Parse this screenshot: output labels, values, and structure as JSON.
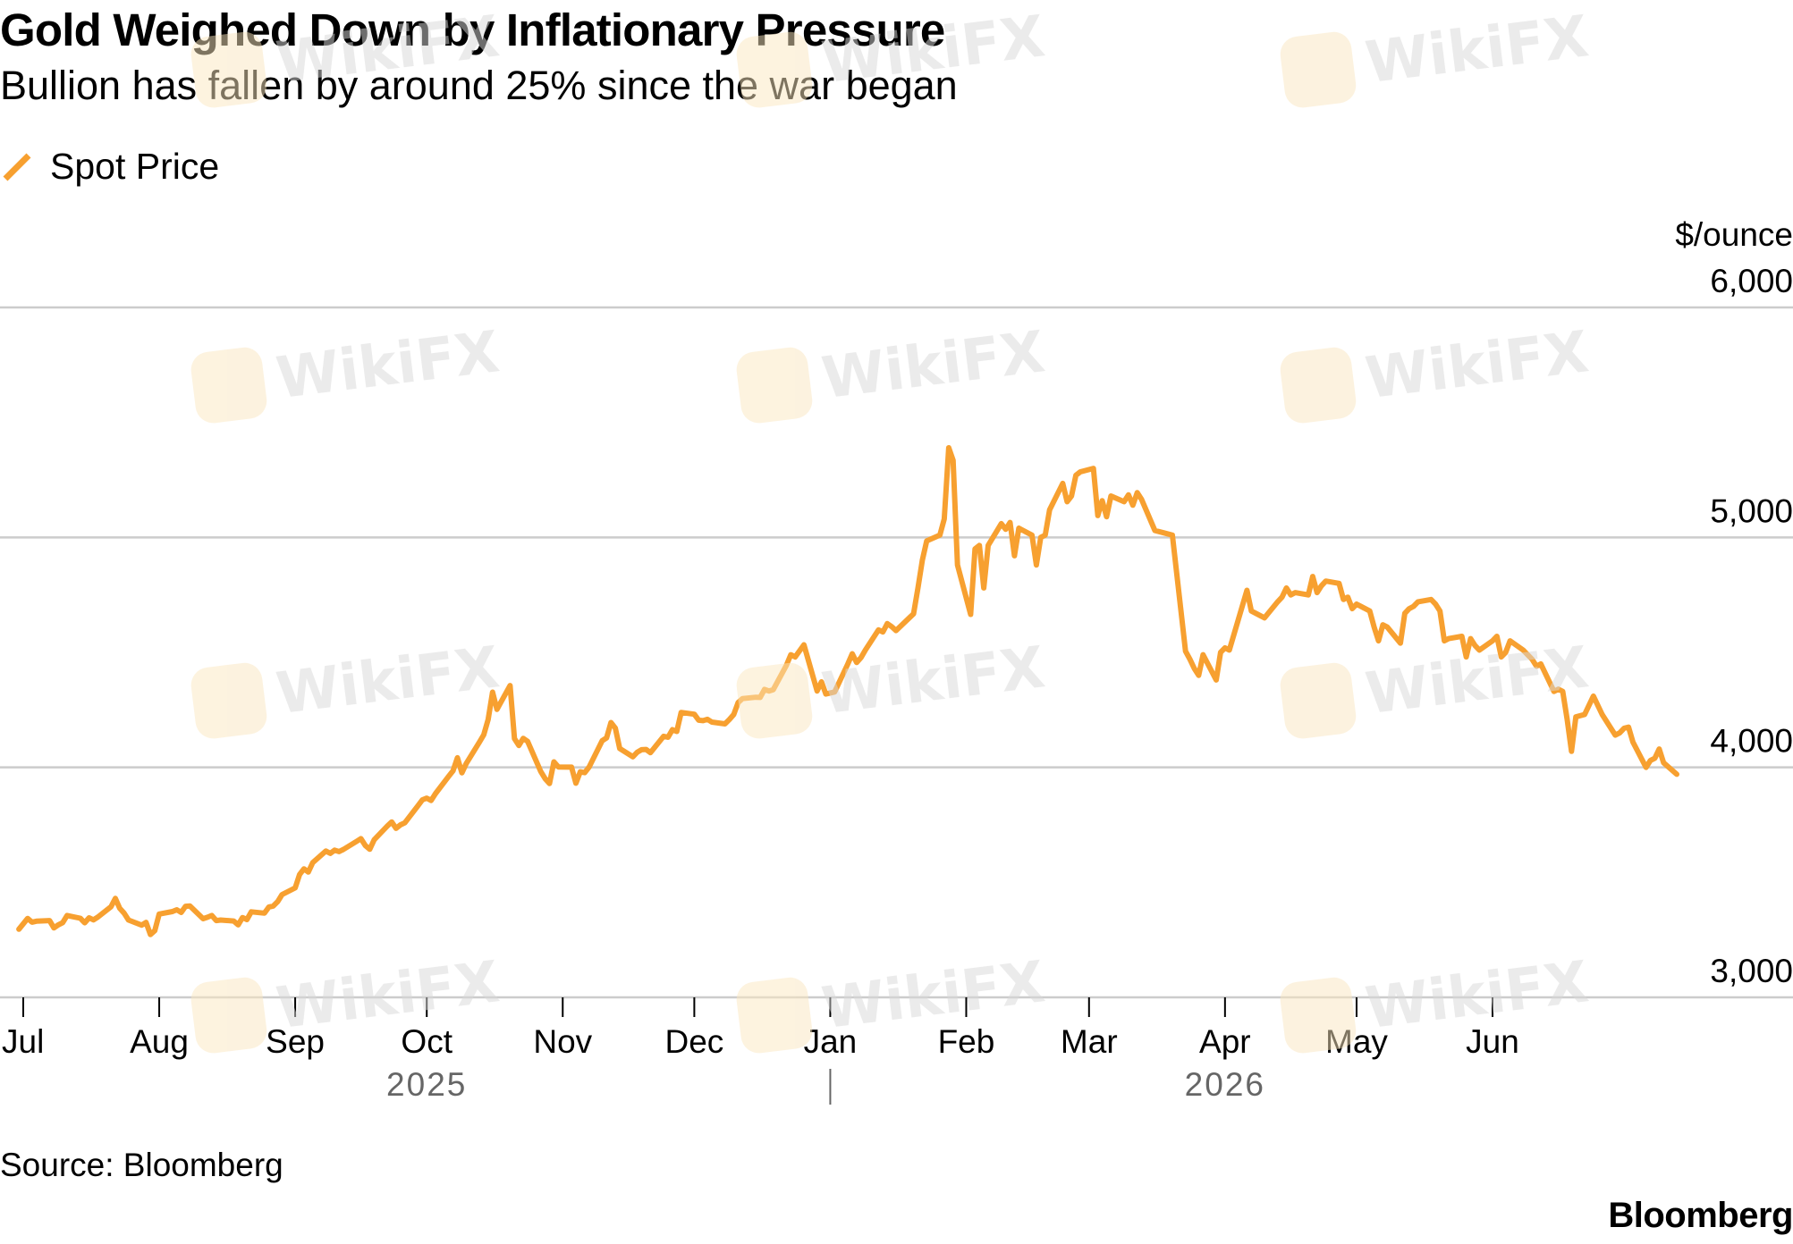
{
  "header": {
    "title": "Gold Weighed Down by Inflationary Pressure",
    "subtitle": "Bullion has fallen by around 25% since the war began"
  },
  "legend": {
    "label": "Spot Price",
    "color": "#F7A030"
  },
  "footer": {
    "source": "Source: Bloomberg",
    "brand": "Bloomberg"
  },
  "watermark": {
    "text": "WikiFX",
    "icon": "wikifx-logo-icon"
  },
  "chart_data": {
    "type": "line",
    "ylabel": "$/ounce",
    "ylim": [
      3000,
      6000
    ],
    "yticks": [
      6000,
      5000,
      4000,
      3000
    ],
    "ytick_labels": [
      "6,000",
      "5,000",
      "4,000",
      "3,000"
    ],
    "xlim": [
      "2025-07-01",
      "2026-07-13"
    ],
    "xticks": [
      {
        "date": "2025-07-01",
        "label": "Jul"
      },
      {
        "date": "2025-08-01",
        "label": "Aug"
      },
      {
        "date": "2025-09-01",
        "label": "Sep"
      },
      {
        "date": "2025-10-01",
        "label": "Oct"
      },
      {
        "date": "2025-11-01",
        "label": "Nov"
      },
      {
        "date": "2025-12-01",
        "label": "Dec"
      },
      {
        "date": "2026-01-01",
        "label": "Jan"
      },
      {
        "date": "2026-02-01",
        "label": "Feb"
      },
      {
        "date": "2026-03-01",
        "label": "Mar"
      },
      {
        "date": "2026-04-01",
        "label": "Apr"
      },
      {
        "date": "2026-05-01",
        "label": "May"
      },
      {
        "date": "2026-06-01",
        "label": "Jun"
      }
    ],
    "years": [
      {
        "label": "2025",
        "date": "2025-10-01"
      },
      {
        "label": "2026",
        "date": "2026-04-01"
      }
    ],
    "year_divider": "2026-01-01",
    "grid": true,
    "legend_position": "top-left",
    "series": [
      {
        "name": "Spot Price",
        "color": "#F7A030",
        "points": [
          [
            "2025-06-30",
            3296
          ],
          [
            "2025-07-02",
            3343
          ],
          [
            "2025-07-03",
            3327
          ],
          [
            "2025-07-04",
            3331
          ],
          [
            "2025-07-07",
            3334
          ],
          [
            "2025-07-08",
            3302
          ],
          [
            "2025-07-09",
            3315
          ],
          [
            "2025-07-10",
            3325
          ],
          [
            "2025-07-11",
            3356
          ],
          [
            "2025-07-14",
            3344
          ],
          [
            "2025-07-15",
            3324
          ],
          [
            "2025-07-16",
            3346
          ],
          [
            "2025-07-17",
            3337
          ],
          [
            "2025-07-18",
            3349
          ],
          [
            "2025-07-21",
            3394
          ],
          [
            "2025-07-22",
            3430
          ],
          [
            "2025-07-23",
            3387
          ],
          [
            "2025-07-24",
            3366
          ],
          [
            "2025-07-25",
            3336
          ],
          [
            "2025-07-28",
            3314
          ],
          [
            "2025-07-29",
            3326
          ],
          [
            "2025-07-30",
            3273
          ],
          [
            "2025-07-31",
            3290
          ],
          [
            "2025-08-01",
            3362
          ],
          [
            "2025-08-04",
            3373
          ],
          [
            "2025-08-05",
            3381
          ],
          [
            "2025-08-06",
            3369
          ],
          [
            "2025-08-07",
            3396
          ],
          [
            "2025-08-08",
            3397
          ],
          [
            "2025-08-11",
            3342
          ],
          [
            "2025-08-12",
            3348
          ],
          [
            "2025-08-13",
            3356
          ],
          [
            "2025-08-14",
            3334
          ],
          [
            "2025-08-15",
            3336
          ],
          [
            "2025-08-18",
            3332
          ],
          [
            "2025-08-19",
            3315
          ],
          [
            "2025-08-20",
            3347
          ],
          [
            "2025-08-21",
            3338
          ],
          [
            "2025-08-22",
            3372
          ],
          [
            "2025-08-25",
            3366
          ],
          [
            "2025-08-26",
            3393
          ],
          [
            "2025-08-27",
            3397
          ],
          [
            "2025-08-28",
            3416
          ],
          [
            "2025-08-29",
            3447
          ],
          [
            "2025-09-01",
            3476
          ],
          [
            "2025-09-02",
            3534
          ],
          [
            "2025-09-03",
            3559
          ],
          [
            "2025-09-04",
            3545
          ],
          [
            "2025-09-05",
            3586
          ],
          [
            "2025-09-08",
            3636
          ],
          [
            "2025-09-09",
            3626
          ],
          [
            "2025-09-10",
            3640
          ],
          [
            "2025-09-11",
            3634
          ],
          [
            "2025-09-12",
            3643
          ],
          [
            "2025-09-15",
            3678
          ],
          [
            "2025-09-16",
            3690
          ],
          [
            "2025-09-17",
            3660
          ],
          [
            "2025-09-18",
            3644
          ],
          [
            "2025-09-19",
            3685
          ],
          [
            "2025-09-22",
            3745
          ],
          [
            "2025-09-23",
            3763
          ],
          [
            "2025-09-24",
            3735
          ],
          [
            "2025-09-25",
            3750
          ],
          [
            "2025-09-26",
            3759
          ],
          [
            "2025-09-29",
            3833
          ],
          [
            "2025-09-30",
            3859
          ],
          [
            "2025-10-01",
            3866
          ],
          [
            "2025-10-02",
            3856
          ],
          [
            "2025-10-03",
            3886
          ],
          [
            "2025-10-06",
            3961
          ],
          [
            "2025-10-07",
            3985
          ],
          [
            "2025-10-08",
            4042
          ],
          [
            "2025-10-09",
            3976
          ],
          [
            "2025-10-10",
            4017
          ],
          [
            "2025-10-13",
            4110
          ],
          [
            "2025-10-14",
            4142
          ],
          [
            "2025-10-15",
            4209
          ],
          [
            "2025-10-16",
            4327
          ],
          [
            "2025-10-17",
            4252
          ],
          [
            "2025-10-20",
            4356
          ],
          [
            "2025-10-21",
            4125
          ],
          [
            "2025-10-22",
            4095
          ],
          [
            "2025-10-23",
            4126
          ],
          [
            "2025-10-24",
            4113
          ],
          [
            "2025-10-27",
            3982
          ],
          [
            "2025-10-28",
            3951
          ],
          [
            "2025-10-29",
            3930
          ],
          [
            "2025-10-30",
            4024
          ],
          [
            "2025-10-31",
            4002
          ],
          [
            "2025-11-03",
            4001
          ],
          [
            "2025-11-04",
            3931
          ],
          [
            "2025-11-05",
            3981
          ],
          [
            "2025-11-06",
            3977
          ],
          [
            "2025-11-07",
            4001
          ],
          [
            "2025-11-10",
            4116
          ],
          [
            "2025-11-11",
            4128
          ],
          [
            "2025-11-12",
            4195
          ],
          [
            "2025-11-13",
            4171
          ],
          [
            "2025-11-14",
            4082
          ],
          [
            "2025-11-17",
            4046
          ],
          [
            "2025-11-18",
            4066
          ],
          [
            "2025-11-19",
            4077
          ],
          [
            "2025-11-20",
            4078
          ],
          [
            "2025-11-21",
            4064
          ],
          [
            "2025-11-24",
            4135
          ],
          [
            "2025-11-25",
            4131
          ],
          [
            "2025-11-26",
            4164
          ],
          [
            "2025-11-27",
            4156
          ],
          [
            "2025-11-28",
            4239
          ],
          [
            "2025-12-01",
            4231
          ],
          [
            "2025-12-02",
            4205
          ],
          [
            "2025-12-03",
            4203
          ],
          [
            "2025-12-04",
            4209
          ],
          [
            "2025-12-05",
            4197
          ],
          [
            "2025-12-08",
            4189
          ],
          [
            "2025-12-09",
            4208
          ],
          [
            "2025-12-10",
            4230
          ],
          [
            "2025-12-11",
            4282
          ],
          [
            "2025-12-12",
            4299
          ],
          [
            "2025-12-15",
            4305
          ],
          [
            "2025-12-16",
            4304
          ],
          [
            "2025-12-17",
            4339
          ],
          [
            "2025-12-18",
            4332
          ],
          [
            "2025-12-19",
            4338
          ],
          [
            "2025-12-22",
            4444
          ],
          [
            "2025-12-23",
            4490
          ],
          [
            "2025-12-24",
            4480
          ],
          [
            "2025-12-26",
            4533
          ],
          [
            "2025-12-29",
            4332
          ],
          [
            "2025-12-30",
            4372
          ],
          [
            "2025-12-31",
            4319
          ],
          [
            "2026-01-02",
            4328
          ],
          [
            "2026-01-05",
            4449
          ],
          [
            "2026-01-06",
            4494
          ],
          [
            "2026-01-07",
            4456
          ],
          [
            "2026-01-08",
            4477
          ],
          [
            "2026-01-09",
            4510
          ],
          [
            "2026-01-12",
            4598
          ],
          [
            "2026-01-13",
            4589
          ],
          [
            "2026-01-14",
            4625
          ],
          [
            "2026-01-15",
            4612
          ],
          [
            "2026-01-16",
            4595
          ],
          [
            "2026-01-20",
            4668
          ],
          [
            "2026-01-21",
            4780
          ],
          [
            "2026-01-22",
            4901
          ],
          [
            "2026-01-23",
            4985
          ],
          [
            "2026-01-26",
            5010
          ],
          [
            "2026-01-27",
            5080
          ],
          [
            "2026-01-28",
            5390
          ],
          [
            "2026-01-29",
            5335
          ],
          [
            "2026-01-30",
            4880
          ],
          [
            "2026-02-02",
            4665
          ],
          [
            "2026-02-03",
            4950
          ],
          [
            "2026-02-04",
            4965
          ],
          [
            "2026-02-05",
            4780
          ],
          [
            "2026-02-06",
            4965
          ],
          [
            "2026-02-09",
            5060
          ],
          [
            "2026-02-10",
            5035
          ],
          [
            "2026-02-11",
            5065
          ],
          [
            "2026-02-12",
            4920
          ],
          [
            "2026-02-13",
            5040
          ],
          [
            "2026-02-16",
            5010
          ],
          [
            "2026-02-17",
            4880
          ],
          [
            "2026-02-18",
            5000
          ],
          [
            "2026-02-19",
            5010
          ],
          [
            "2026-02-20",
            5120
          ],
          [
            "2026-02-23",
            5235
          ],
          [
            "2026-02-24",
            5155
          ],
          [
            "2026-02-25",
            5180
          ],
          [
            "2026-02-26",
            5270
          ],
          [
            "2026-02-27",
            5285
          ],
          [
            "2026-03-02",
            5300
          ],
          [
            "2026-03-03",
            5095
          ],
          [
            "2026-03-04",
            5160
          ],
          [
            "2026-03-05",
            5090
          ],
          [
            "2026-03-06",
            5180
          ],
          [
            "2026-03-09",
            5155
          ],
          [
            "2026-03-10",
            5185
          ],
          [
            "2026-03-11",
            5140
          ],
          [
            "2026-03-12",
            5195
          ],
          [
            "2026-03-13",
            5165
          ],
          [
            "2026-03-16",
            5030
          ],
          [
            "2026-03-18",
            5020
          ],
          [
            "2026-03-20",
            5010
          ],
          [
            "2026-03-23",
            4505
          ],
          [
            "2026-03-24",
            4470
          ],
          [
            "2026-03-25",
            4430
          ],
          [
            "2026-03-26",
            4400
          ],
          [
            "2026-03-27",
            4490
          ],
          [
            "2026-03-30",
            4380
          ],
          [
            "2026-03-31",
            4500
          ],
          [
            "2026-04-01",
            4520
          ],
          [
            "2026-04-02",
            4510
          ],
          [
            "2026-04-06",
            4770
          ],
          [
            "2026-04-07",
            4680
          ],
          [
            "2026-04-09",
            4660
          ],
          [
            "2026-04-10",
            4650
          ],
          [
            "2026-04-13",
            4720
          ],
          [
            "2026-04-14",
            4740
          ],
          [
            "2026-04-15",
            4780
          ],
          [
            "2026-04-16",
            4750
          ],
          [
            "2026-04-17",
            4760
          ],
          [
            "2026-04-20",
            4750
          ],
          [
            "2026-04-21",
            4830
          ],
          [
            "2026-04-22",
            4760
          ],
          [
            "2026-04-23",
            4790
          ],
          [
            "2026-04-24",
            4810
          ],
          [
            "2026-04-27",
            4800
          ],
          [
            "2026-04-28",
            4730
          ],
          [
            "2026-04-29",
            4740
          ],
          [
            "2026-04-30",
            4690
          ],
          [
            "2026-05-01",
            4710
          ],
          [
            "2026-05-04",
            4680
          ],
          [
            "2026-05-05",
            4610
          ],
          [
            "2026-05-06",
            4550
          ],
          [
            "2026-05-07",
            4620
          ],
          [
            "2026-05-08",
            4610
          ],
          [
            "2026-05-11",
            4540
          ],
          [
            "2026-05-12",
            4670
          ],
          [
            "2026-05-13",
            4690
          ],
          [
            "2026-05-14",
            4700
          ],
          [
            "2026-05-15",
            4720
          ],
          [
            "2026-05-18",
            4730
          ],
          [
            "2026-05-19",
            4710
          ],
          [
            "2026-05-20",
            4680
          ],
          [
            "2026-05-21",
            4550
          ],
          [
            "2026-05-22",
            4560
          ],
          [
            "2026-05-25",
            4570
          ],
          [
            "2026-05-26",
            4480
          ],
          [
            "2026-05-27",
            4560
          ],
          [
            "2026-05-28",
            4530
          ],
          [
            "2026-05-29",
            4510
          ],
          [
            "2026-06-01",
            4550
          ],
          [
            "2026-06-02",
            4570
          ],
          [
            "2026-06-03",
            4480
          ],
          [
            "2026-06-04",
            4500
          ],
          [
            "2026-06-05",
            4550
          ],
          [
            "2026-06-08",
            4510
          ],
          [
            "2026-06-09",
            4490
          ],
          [
            "2026-06-10",
            4470
          ],
          [
            "2026-06-11",
            4440
          ],
          [
            "2026-06-12",
            4450
          ],
          [
            "2026-06-15",
            4330
          ],
          [
            "2026-06-16",
            4340
          ],
          [
            "2026-06-17",
            4330
          ],
          [
            "2026-06-18",
            4210
          ],
          [
            "2026-06-19",
            4070
          ],
          [
            "2026-06-20",
            4220
          ],
          [
            "2026-06-22",
            4230
          ],
          [
            "2026-06-23",
            4270
          ],
          [
            "2026-06-24",
            4310
          ],
          [
            "2026-06-26",
            4230
          ],
          [
            "2026-06-29",
            4140
          ],
          [
            "2026-06-30",
            4150
          ],
          [
            "2026-07-01",
            4170
          ],
          [
            "2026-07-02",
            4175
          ],
          [
            "2026-07-03",
            4110
          ],
          [
            "2026-07-06",
            4000
          ],
          [
            "2026-07-07",
            4030
          ],
          [
            "2026-07-08",
            4040
          ],
          [
            "2026-07-09",
            4080
          ],
          [
            "2026-07-10",
            4020
          ],
          [
            "2026-07-13",
            3970
          ]
        ]
      }
    ]
  }
}
